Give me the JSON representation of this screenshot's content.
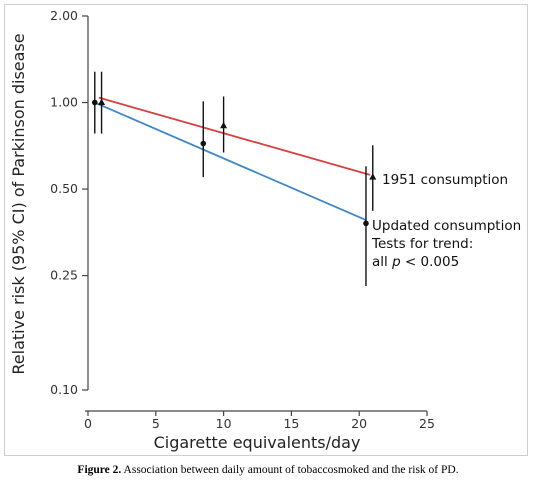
{
  "chart_data": {
    "type": "scatter",
    "ylabel": "Relative risk (95% CI) of Parkinson disease",
    "xlabel": "Cigarette equivalents/day",
    "xlim": [
      0,
      25
    ],
    "ylim": [
      0.1,
      2.0
    ],
    "y_scale": "log",
    "x_ticks": [
      0,
      5,
      10,
      15,
      20,
      25
    ],
    "x_tick_labels": [
      "0",
      "5",
      "10",
      "15",
      "20",
      "25"
    ],
    "y_ticks": [
      0.1,
      0.25,
      0.5,
      1.0,
      2.0
    ],
    "y_tick_labels": [
      "0.10",
      "0.25",
      "0.50",
      "1.00",
      "2.00"
    ],
    "grid": false,
    "series": [
      {
        "name": "Updated consumption",
        "marker": "circle",
        "color": "#111111",
        "points": [
          {
            "x": 0.5,
            "y": 1.0,
            "ci": [
              0.78,
              1.28
            ]
          },
          {
            "x": 8.5,
            "y": 0.72,
            "ci": [
              0.55,
              1.01
            ]
          },
          {
            "x": 20.5,
            "y": 0.38,
            "ci": [
              0.23,
              0.6
            ]
          }
        ],
        "trend": {
          "x": [
            0.5,
            20.5
          ],
          "y": [
            1.0,
            0.39
          ],
          "color": "#3f86c6"
        }
      },
      {
        "name": "1951 consumption",
        "marker": "triangle",
        "color": "#111111",
        "points": [
          {
            "x": 1.0,
            "y": 1.0,
            "ci": [
              0.78,
              1.28
            ]
          },
          {
            "x": 10.0,
            "y": 0.83,
            "ci": [
              0.67,
              1.05
            ]
          },
          {
            "x": 21.0,
            "y": 0.55,
            "ci": [
              0.42,
              0.71
            ]
          }
        ],
        "trend": {
          "x": [
            0.8,
            20.8
          ],
          "y": [
            1.04,
            0.56
          ],
          "color": "#d84040"
        }
      }
    ],
    "annotations": {
      "label_1951": "1951 consumption",
      "label_updated": "Updated consumption",
      "trend_line_1": "Tests for trend:",
      "trend_prefix": "all ",
      "trend_p": "p",
      "trend_suffix": " < 0.005"
    }
  },
  "caption": {
    "label": "Figure 2.",
    "text": "Association between daily amount of tobaccosmoked and the risk of PD."
  }
}
